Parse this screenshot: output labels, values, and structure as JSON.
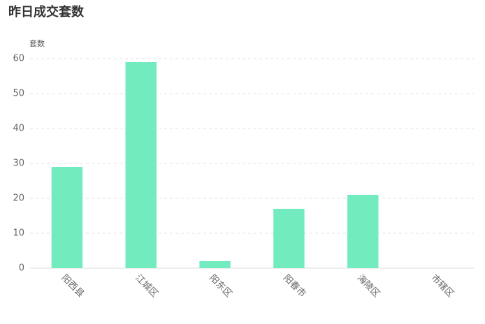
{
  "chart_data": {
    "type": "bar",
    "title": "昨日成交套数",
    "y_label": "套数",
    "categories": [
      "阳西县",
      "江城区",
      "阳东区",
      "阳春市",
      "海陵区",
      "市辖区"
    ],
    "values": [
      29,
      59,
      2,
      17,
      21,
      0
    ],
    "color": "#72ecbe",
    "ylim": [
      0,
      60
    ],
    "yticks": [
      0,
      10,
      20,
      30,
      40,
      50,
      60
    ],
    "grid": true
  }
}
